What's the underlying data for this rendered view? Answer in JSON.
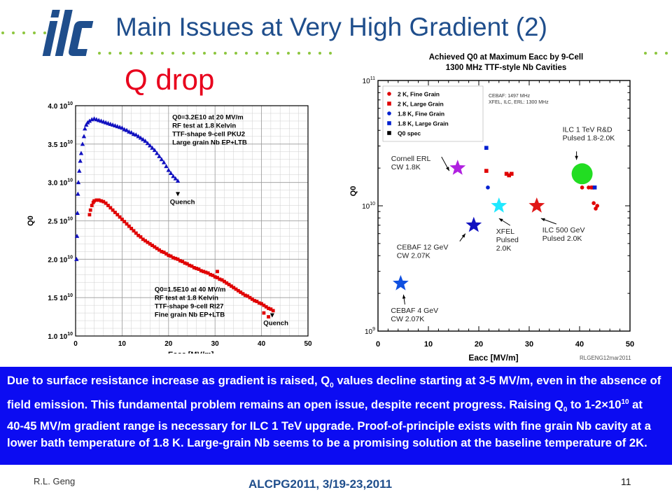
{
  "slide": {
    "logo_text": "ilc",
    "title": "Main Issues at Very High Gradient (2)",
    "subtitle": "Q drop",
    "body": {
      "s1": "Due to surface resistance increase as gradient is raised, Q",
      "sub1": "0",
      "s2": " values decline starting at 3-5 MV/m, even in the absence of field emission. This fundamental problem remains an open issue, despite recent progress. Raising Q",
      "sub2": "0",
      "s3": " to 1-2×10",
      "sup1": "10",
      "s4": " at 40-45 MV/m gradient range is necessary for ILC 1 TeV upgrade. Proof-of-principle exists with fine grain Nb cavity at a lower bath temperature of 1.8 K. Large-grain Nb seems to be a promising solution at the baseline temperature of 2K."
    },
    "footer": {
      "author": "R.L. Geng",
      "conference": "ALCPG2011, 3/19-23,2011",
      "page": "11"
    },
    "colors": {
      "title_blue": "#1f4e8c",
      "accent_red": "#e8001c",
      "box_blue": "#0c0cf2"
    }
  },
  "chart_data": [
    {
      "type": "scatter",
      "xlabel": "Eacc [MV/m]",
      "ylabel": "Q0",
      "xlim": [
        0,
        50
      ],
      "ylim": [
        10000000000.0,
        40000000000.0
      ],
      "x_ticks": [
        0,
        10,
        20,
        30,
        40,
        50
      ],
      "y_ticks": [
        {
          "v": 10000000000.0,
          "m": "1.0",
          "e": "10"
        },
        {
          "v": 15000000000.0,
          "m": "1.5",
          "e": "10"
        },
        {
          "v": 20000000000.0,
          "m": "2.0",
          "e": "10"
        },
        {
          "v": 25000000000.0,
          "m": "2.5",
          "e": "10"
        },
        {
          "v": 30000000000.0,
          "m": "3.0",
          "e": "10"
        },
        {
          "v": 35000000000.0,
          "m": "3.5",
          "e": "10"
        },
        {
          "v": 40000000000.0,
          "m": "4.0",
          "e": "10"
        }
      ],
      "grid": true,
      "series": [
        {
          "marker": "triangle",
          "color": "#1010c0",
          "x": [
            0.2,
            0.3,
            0.4,
            0.5,
            0.6,
            0.8,
            1.0,
            1.2,
            1.5,
            1.8,
            2.0,
            2.3,
            2.6,
            3.0,
            3.5,
            4.0,
            4.5,
            5.0,
            5.5,
            6.0,
            6.5,
            7.0,
            7.5,
            8.0,
            8.5,
            9.0,
            9.5,
            10.0,
            10.5,
            11.0,
            11.5,
            12.0,
            12.5,
            13.0,
            13.5,
            14.0,
            14.5,
            15.0,
            15.5,
            16.0,
            16.5,
            17.0,
            17.5,
            18.0,
            18.5,
            19.0,
            19.5,
            20.0,
            20.5,
            21.0,
            21.5,
            22.0
          ],
          "y": [
            20000000000.0,
            23000000000.0,
            26000000000.0,
            28500000000.0,
            30000000000.0,
            31500000000.0,
            32800000000.0,
            33800000000.0,
            35000000000.0,
            36000000000.0,
            37000000000.0,
            37500000000.0,
            37800000000.0,
            38000000000.0,
            38200000000.0,
            38300000000.0,
            38200000000.0,
            38100000000.0,
            38000000000.0,
            37900000000.0,
            37800000000.0,
            37700000000.0,
            37600000000.0,
            37500000000.0,
            37400000000.0,
            37300000000.0,
            37200000000.0,
            37100000000.0,
            36900000000.0,
            36800000000.0,
            36600000000.0,
            36500000000.0,
            36300000000.0,
            36200000000.0,
            36000000000.0,
            35800000000.0,
            35600000000.0,
            35400000000.0,
            35100000000.0,
            34800000000.0,
            34500000000.0,
            34200000000.0,
            33800000000.0,
            33400000000.0,
            33000000000.0,
            32600000000.0,
            32100000000.0,
            31600000000.0,
            31200000000.0,
            30800000000.0,
            30500000000.0,
            30200000000.0
          ]
        },
        {
          "marker": "square",
          "color": "#e00000",
          "x": [
            3.0,
            3.2,
            3.5,
            3.8,
            4.0,
            4.5,
            5.0,
            5.5,
            6.0,
            6.5,
            7.0,
            7.5,
            8.0,
            8.5,
            9.0,
            9.5,
            10.0,
            10.5,
            11.0,
            11.5,
            12.0,
            12.5,
            13.0,
            13.5,
            14.0,
            14.5,
            15.0,
            15.5,
            16.0,
            16.5,
            17.0,
            17.5,
            18.0,
            18.5,
            19.0,
            19.5,
            20.0,
            20.5,
            21.0,
            21.5,
            22.0,
            22.5,
            23.0,
            23.5,
            24.0,
            24.5,
            25.0,
            25.5,
            26.0,
            26.5,
            27.0,
            27.5,
            28.0,
            28.5,
            29.0,
            29.5,
            30.0,
            30.5,
            31.0,
            31.5,
            32.0,
            32.5,
            33.0,
            33.5,
            34.0,
            34.5,
            35.0,
            35.5,
            36.0,
            36.5,
            37.0,
            37.5,
            38.0,
            38.5,
            39.0,
            39.5,
            40.0,
            40.5,
            41.0,
            41.5,
            42.0,
            42.5
          ],
          "y": [
            25800000000.0,
            26400000000.0,
            27000000000.0,
            27400000000.0,
            27600000000.0,
            27700000000.0,
            27700000000.0,
            27600000000.0,
            27500000000.0,
            27300000000.0,
            27000000000.0,
            26700000000.0,
            26400000000.0,
            26100000000.0,
            25800000000.0,
            25500000000.0,
            25200000000.0,
            24900000000.0,
            24600000000.0,
            24300000000.0,
            24000000000.0,
            23700000000.0,
            23400000000.0,
            23100000000.0,
            22900000000.0,
            22600000000.0,
            22400000000.0,
            22200000000.0,
            22000000000.0,
            21800000000.0,
            21600000000.0,
            21400000000.0,
            21200000000.0,
            21000000000.0,
            20900000000.0,
            20700000000.0,
            20500000000.0,
            20400000000.0,
            20200000000.0,
            20100000000.0,
            20000000000.0,
            19800000000.0,
            19700000000.0,
            19500000000.0,
            19400000000.0,
            19200000000.0,
            19100000000.0,
            18900000000.0,
            18800000000.0,
            18700000000.0,
            18500000000.0,
            18400000000.0,
            18300000000.0,
            18200000000.0,
            18000000000.0,
            17900000000.0,
            17700000000.0,
            17600000000.0,
            17400000000.0,
            17300000000.0,
            17100000000.0,
            16900000000.0,
            16700000000.0,
            16500000000.0,
            16300000000.0,
            16100000000.0,
            15900000000.0,
            15700000000.0,
            15500000000.0,
            15300000000.0,
            15200000000.0,
            15000000000.0,
            14800000000.0,
            14600000000.0,
            14500000000.0,
            14300000000.0,
            14200000000.0,
            14000000000.0,
            13800000000.0,
            13600000000.0,
            13500000000.0,
            13300000000.0
          ]
        },
        {
          "marker": "square",
          "color": "#e00000",
          "x": [
            30.5,
            40.5,
            41.5
          ],
          "y": [
            18400000000.0,
            13000000000.0,
            12500000000.0
          ]
        }
      ],
      "annotations": [
        {
          "lines": [
            "Q0=3.2E10  at  20  MV/m",
            "RF  test  at  1.8  Kelvin",
            "TTF-shape  9-cell  PKU2",
            "Large grain  Nb  EP+LTB"
          ],
          "x": 20.8,
          "y": 38200000000.0
        },
        {
          "text": "Quench",
          "x": 20.3,
          "y": 27200000000.0,
          "arrow_to": [
            22,
            28400000000.0
          ]
        },
        {
          "lines": [
            "Q0=1.5E10  at  40  MV/m",
            "RF  test  at  1.8  Kelvin",
            "TTF-shape  9-cell  RI27",
            "Fine  grain  Nb  EP+LTB"
          ],
          "x": 17.0,
          "y": 15800000000.0
        },
        {
          "text": "Quench",
          "x": 40.4,
          "y": 11400000000.0,
          "arrow_to": [
            42.3,
            12500000000.0
          ]
        }
      ]
    },
    {
      "type": "scatter",
      "title_lines": [
        "Achieved  Q0  at  Maximum  Eacc  by  9-Cell",
        "1300  MHz  TTF-style  Nb  Cavities"
      ],
      "xlabel": "Eacc  [MV/m]",
      "ylabel": "Q0",
      "y_scale": "log",
      "xlim": [
        0,
        50
      ],
      "ylim": [
        1000000000.0,
        100000000000.0
      ],
      "x_ticks": [
        0,
        10,
        20,
        30,
        40,
        50
      ],
      "y_ticks": [
        {
          "v": 1000000000.0,
          "m": "10",
          "e": "9"
        },
        {
          "v": 10000000000.0,
          "m": "10",
          "e": "10"
        },
        {
          "v": 100000000000.0,
          "m": "10",
          "e": "11"
        }
      ],
      "credit": "RLGENG12mar2011",
      "legend": {
        "position": "top-left",
        "entries": [
          {
            "label": "2  K,  Fine Grain",
            "marker": "circle",
            "color": "#e00000"
          },
          {
            "label": "2  K,  Large Grain",
            "marker": "square",
            "color": "#e00000"
          },
          {
            "label": "1.8  K,  Fine  Grain",
            "marker": "circle",
            "color": "#0020d0"
          },
          {
            "label": "1.8  K,  Large Grain",
            "marker": "square",
            "color": "#0020d0"
          },
          {
            "label": "Q0  spec",
            "marker": "square",
            "color": "#000000"
          }
        ]
      },
      "notes": [
        "CEBAF: 1497 MHz",
        "XFEL, ILC, ERL: 1300 MHz"
      ],
      "series": [
        {
          "name": "2  K,  Fine Grain",
          "marker": "circle",
          "color": "#e00000",
          "x": [
            40.5,
            41.8,
            42.8,
            43.2,
            43.5
          ],
          "y": [
            14000000000.0,
            14000000000.0,
            10500000000.0,
            9500000000.0,
            10000000000.0
          ]
        },
        {
          "name": "2  K,  Large Grain",
          "marker": "square",
          "color": "#e00000",
          "x": [
            21.5,
            25.5,
            26.0,
            26.5,
            42.5
          ],
          "y": [
            19000000000.0,
            18000000000.0,
            17500000000.0,
            18000000000.0,
            14000000000.0
          ]
        },
        {
          "name": "1.8  K,  Fine  Grain",
          "marker": "circle",
          "color": "#0020d0",
          "x": [
            21.8
          ],
          "y": [
            14000000000.0
          ]
        },
        {
          "name": "1.8  K,  Large Grain",
          "marker": "square",
          "color": "#0020d0",
          "x": [
            21.5,
            43.0
          ],
          "y": [
            29000000000.0,
            14000000000.0
          ]
        }
      ],
      "targets": [
        {
          "label_lines": [
            "ILC 1 TeV R&D",
            "Pulsed 1.8-2.0K"
          ],
          "marker": "circle",
          "color": "#22dd22",
          "x": 40.5,
          "y": 18000000000.0
        },
        {
          "label_lines": [
            "Cornell ERL",
            "CW 1.8K"
          ],
          "marker": "star",
          "color": "#b020e0",
          "x": 15.8,
          "y": 20000000000.0
        },
        {
          "label_lines": [
            "XFEL",
            "Pulsed",
            "2.0K"
          ],
          "marker": "star",
          "color": "#20e8ff",
          "x": 24.0,
          "y": 10000000000.0
        },
        {
          "label_lines": [
            "ILC 500 GeV",
            "Pulsed 2.0K"
          ],
          "marker": "star",
          "color": "#e01818",
          "x": 31.5,
          "y": 10000000000.0
        },
        {
          "label_lines": [
            "CEBAF 12 GeV",
            "CW 2.07K"
          ],
          "marker": "star",
          "color": "#1010c0",
          "x": 19.0,
          "y": 7000000000.0
        },
        {
          "label_lines": [
            "CEBAF 4 GeV",
            "CW 2.07K"
          ],
          "marker": "star",
          "color": "#1050e0",
          "x": 4.5,
          "y": 2400000000.0
        }
      ]
    }
  ]
}
